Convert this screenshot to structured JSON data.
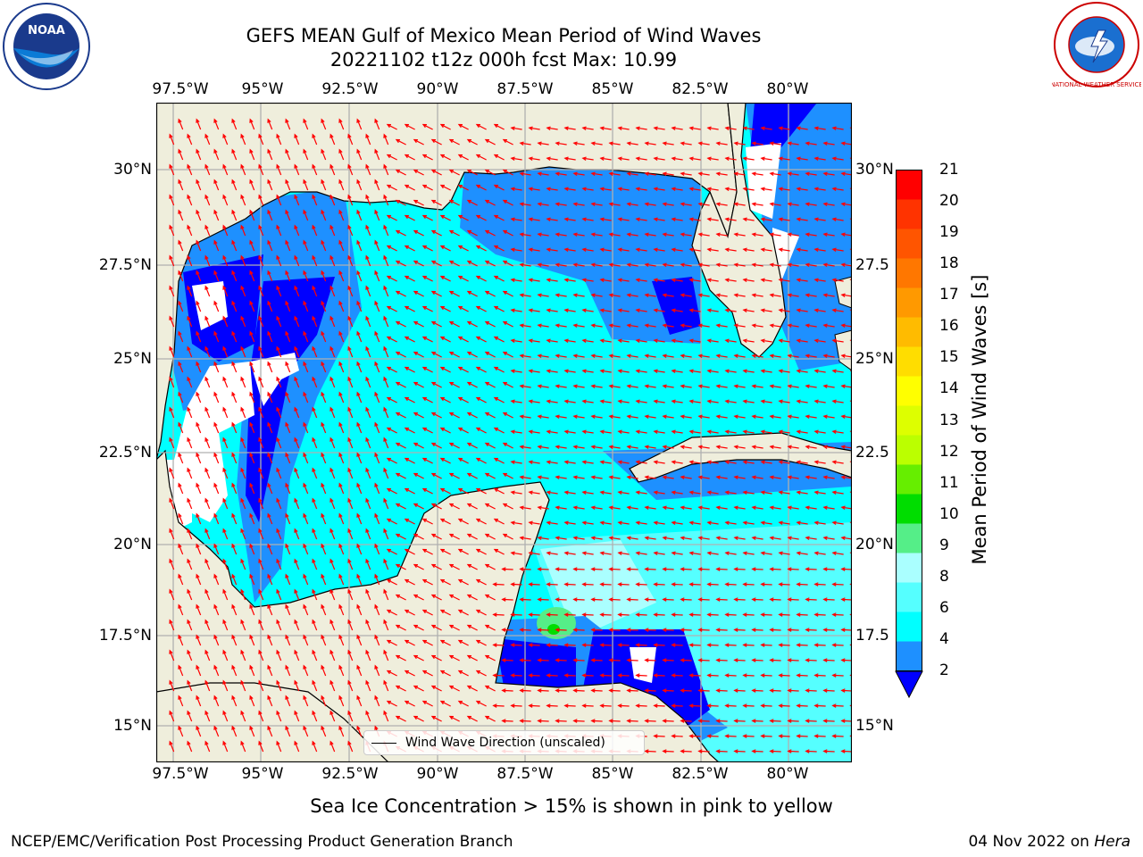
{
  "header": {
    "title_line1": "GEFS MEAN Gulf of Mexico Mean Period of Wind Waves",
    "title_line2": "20221102 t12z 000h fcst   Max: 10.99"
  },
  "logos": {
    "left": "NOAA",
    "right": "NATIONAL WEATHER SERVICE"
  },
  "map": {
    "lon_labels": [
      "97.5°W",
      "95°W",
      "92.5°W",
      "90°W",
      "87.5°W",
      "85°W",
      "82.5°W",
      "80°W"
    ],
    "lat_labels_left": [
      "30°N",
      "27.5°N",
      "25°N",
      "22.5°N",
      "20°N",
      "17.5°N",
      "15°N"
    ],
    "lat_labels_right": [
      "30°N",
      "27.5",
      "25°N",
      "22.5",
      "20°N",
      "17.5",
      "15°N"
    ],
    "legend_label": "Wind Wave Direction (unscaled)",
    "colors": {
      "land": "#efeedc",
      "arrow": "#ff0000",
      "grid": "#b0b0b0"
    }
  },
  "colorbar": {
    "label": "Mean Period of Wind Waves [s]",
    "ticks": [
      "21",
      "20",
      "19",
      "18",
      "17",
      "16",
      "15",
      "14",
      "13",
      "12",
      "11",
      "10",
      "9",
      "8",
      "6",
      "4",
      "2"
    ],
    "colors": [
      "#ff0000",
      "#ff3300",
      "#ff5500",
      "#ff7700",
      "#ff9900",
      "#ffbb00",
      "#ffdd00",
      "#ffff00",
      "#ddff00",
      "#bbff00",
      "#66ee00",
      "#00dd00",
      "#55ee88",
      "#aaffff",
      "#55ffff",
      "#00ffff",
      "#1e90ff"
    ],
    "extend_color": "#0000ff"
  },
  "notes": {
    "sea_ice": "Sea Ice Concentration > 15% is shown in pink to yellow",
    "branch": "NCEP/EMC/Verification Post Processing Product Generation Branch",
    "date": "04 Nov 2022 on ",
    "machine": "Hera"
  }
}
